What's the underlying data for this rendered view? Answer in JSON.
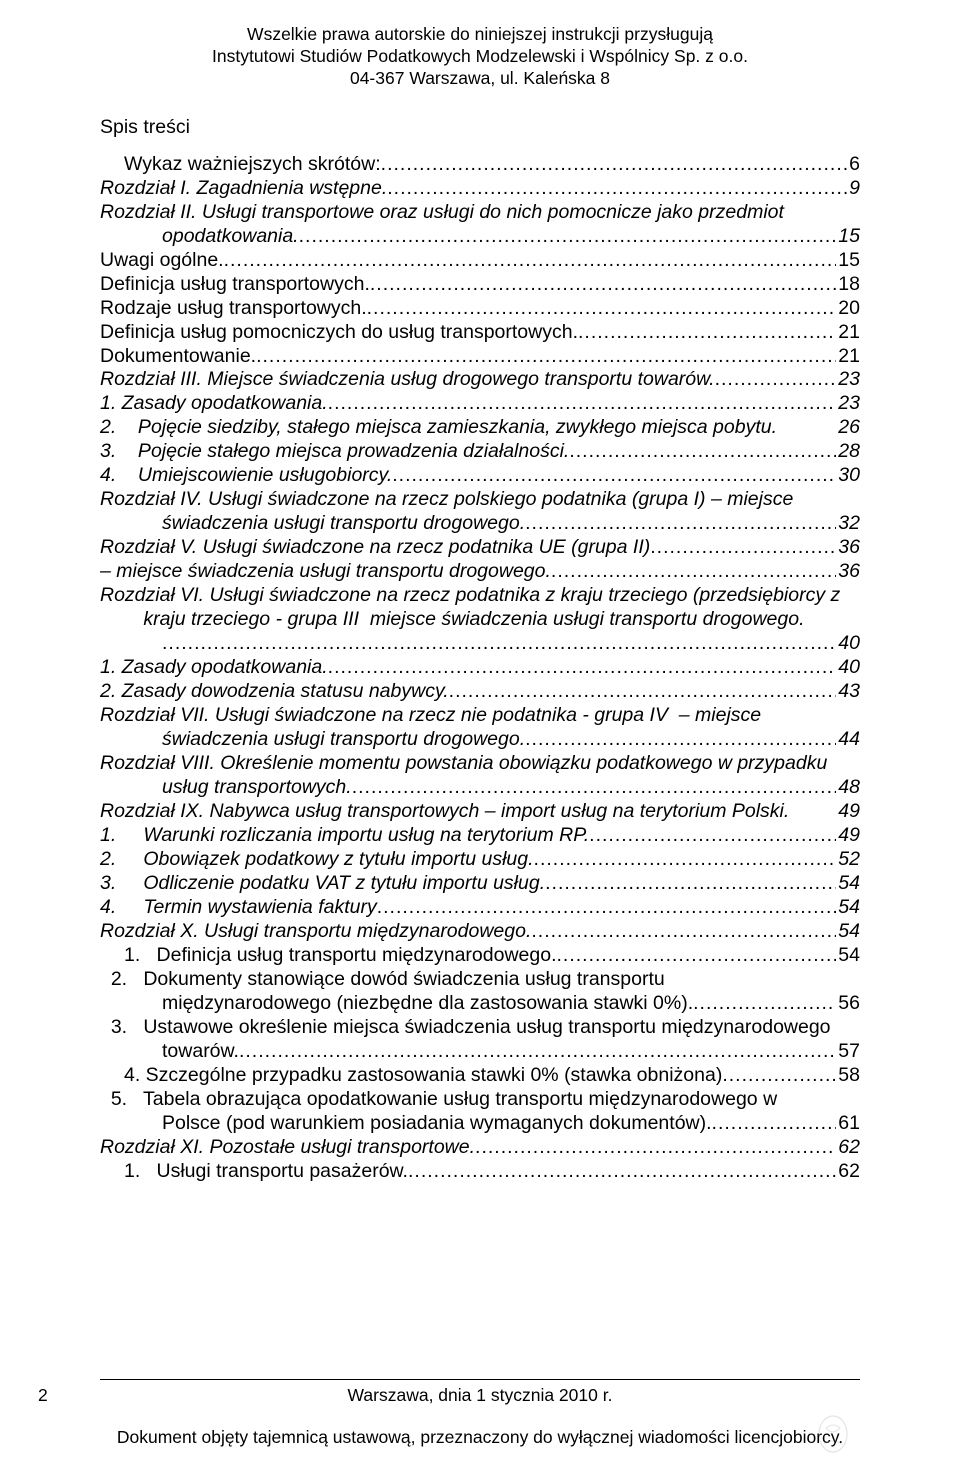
{
  "header": {
    "line1": "Wszelkie prawa autorskie do niniejszej instrukcji przysługują",
    "line2": "Instytutowi Studiów Podatkowych Modzelewski i Wspólnicy Sp. z o.o.",
    "line3": "04-367 Warszawa, ul. Kaleńska 8"
  },
  "section_title": "Spis treści",
  "toc": [
    {
      "label": "Wykaz ważniejszych skrótów:",
      "page": "6",
      "italic": false,
      "indent": "indent1"
    },
    {
      "label": "Rozdział I. Zagadnienia wstępne.",
      "page": "9",
      "italic": true,
      "indent": ""
    },
    {
      "label": "Rozdział II. Usługi transportowe oraz usługi do nich pomocnicze jako przedmiot",
      "italic": true,
      "indent": "",
      "wrap": true
    },
    {
      "label": "opodatkowania.",
      "page": "15",
      "italic": true,
      "indent": "hang",
      "cont": true
    },
    {
      "label": "Uwagi ogólne.",
      "page": "15",
      "italic": false,
      "indent": ""
    },
    {
      "label": "Definicja usług transportowych.",
      "page": "18",
      "italic": false,
      "indent": ""
    },
    {
      "label": "Rodzaje usług transportowych.",
      "page": "20",
      "italic": false,
      "indent": ""
    },
    {
      "label": "Definicja usług pomocniczych do usług transportowych.",
      "page": "21",
      "italic": false,
      "indent": ""
    },
    {
      "label": "Dokumentowanie.",
      "page": "21",
      "italic": false,
      "indent": ""
    },
    {
      "label": "Rozdział III. Miejsce świadczenia usług drogowego transportu towarów.",
      "page": "23",
      "italic": true,
      "indent": ""
    },
    {
      "label": "1. Zasady opodatkowania.",
      "page": "23",
      "italic": true,
      "indent": ""
    },
    {
      "label": "2.    Pojęcie siedziby, stałego miejsca zamieszkania, zwykłego miejsca pobytu.",
      "page": "26",
      "italic": true,
      "indent": "",
      "nodots": true
    },
    {
      "label": "3.    Pojęcie stałego miejsca prowadzenia działalności.",
      "page": "28",
      "italic": true,
      "indent": ""
    },
    {
      "label": "4.    Umiejscowienie usługobiorcy.",
      "page": "30",
      "italic": true,
      "indent": ""
    },
    {
      "label": "Rozdział IV. Usługi świadczone na rzecz polskiego podatnika (grupa I) – miejsce",
      "italic": true,
      "indent": "",
      "wrap": true
    },
    {
      "label": "świadczenia usługi transportu drogowego.",
      "page": "32",
      "italic": true,
      "indent": "hang",
      "cont": true
    },
    {
      "label": "Rozdział V. Usługi świadczone na rzecz podatnika UE (grupa II)",
      "page": "36",
      "italic": true,
      "indent": ""
    },
    {
      "label": "– miejsce świadczenia usługi transportu drogowego.",
      "page": "36",
      "italic": true,
      "indent": ""
    },
    {
      "label": "Rozdział VI. Usługi świadczone na rzecz podatnika z kraju trzeciego (przedsiębiorcy z",
      "italic": true,
      "indent": "",
      "wrap": true
    },
    {
      "label": "kraju trzeciego - grupa III  miejsce świadczenia usługi transportu drogowego.",
      "italic": true,
      "indent": "hang",
      "cont": true,
      "wrap": true
    },
    {
      "label": "",
      "page": "40",
      "italic": true,
      "indent": "hang",
      "cont": true
    },
    {
      "label": "1. Zasady opodatkowania.",
      "page": "40",
      "italic": true,
      "indent": ""
    },
    {
      "label": "2. Zasady dowodzenia statusu nabywcy.",
      "page": "43",
      "italic": true,
      "indent": ""
    },
    {
      "label": "Rozdział VII. Usługi świadczone na rzecz nie podatnika - grupa IV  – miejsce",
      "italic": true,
      "indent": "",
      "wrap": true
    },
    {
      "label": "świadczenia usługi transportu drogowego.",
      "page": "44",
      "italic": true,
      "indent": "hang",
      "cont": true
    },
    {
      "label": "Rozdział VIII. Określenie momentu powstania obowiązku podatkowego w przypadku",
      "italic": true,
      "indent": "",
      "wrap": true
    },
    {
      "label": "usług transportowych.",
      "page": "48",
      "italic": true,
      "indent": "hang",
      "cont": true
    },
    {
      "label": "Rozdział IX. Nabywca usług transportowych – import usług na terytorium Polski. ",
      "page": "49",
      "italic": true,
      "indent": "",
      "nodots": true
    },
    {
      "label": "1.     Warunki rozliczania importu usług na terytorium RP.",
      "page": "49",
      "italic": true,
      "indent": ""
    },
    {
      "label": "2.     Obowiązek podatkowy z tytułu importu usług.",
      "page": "52",
      "italic": true,
      "indent": ""
    },
    {
      "label": "3.     Odliczenie podatku VAT z tytułu importu usług.",
      "page": "54",
      "italic": true,
      "indent": ""
    },
    {
      "label": "4.     Termin wystawienia faktury",
      "page": "54",
      "italic": true,
      "indent": ""
    },
    {
      "label": "Rozdział X. Usługi transportu międzynarodowego.",
      "page": "54",
      "italic": true,
      "indent": ""
    },
    {
      "label": "1.   Definicja usług transportu międzynarodowego.",
      "page": "54",
      "italic": false,
      "indent": "indent1"
    },
    {
      "label": "2.   Dokumenty stanowiące dowód świadczenia usług transportu",
      "italic": false,
      "indent": "indent1",
      "wrap": true
    },
    {
      "label": "międzynarodowego (niezbędne dla zastosowania stawki 0%).",
      "page": "56",
      "italic": false,
      "indent": "hang",
      "cont": true
    },
    {
      "label": "3.   Ustawowe określenie miejsca świadczenia usług transportu międzynarodowego",
      "italic": false,
      "indent": "indent1",
      "wrap": true
    },
    {
      "label": "towarów.",
      "page": "57",
      "italic": false,
      "indent": "hang",
      "cont": true
    },
    {
      "label": "4. Szczególne przypadku zastosowania stawki 0% (stawka obniżona)",
      "page": "58",
      "italic": false,
      "indent": "indent1"
    },
    {
      "label": "5.   Tabela obrazująca opodatkowanie usług transportu międzynarodowego w",
      "italic": false,
      "indent": "indent1",
      "wrap": true
    },
    {
      "label": "Polsce (pod warunkiem posiadania wymaganych dokumentów).",
      "page": "61",
      "italic": false,
      "indent": "hang",
      "cont": true
    },
    {
      "label": "Rozdział XI. Pozostałe usługi transportowe.",
      "page": "62",
      "italic": true,
      "indent": ""
    },
    {
      "label": "1.   Usługi transportu pasażerów.",
      "page": "62",
      "italic": false,
      "indent": "indent1"
    }
  ],
  "footer": {
    "page_number": "2",
    "city_date": "Warszawa, dnia 1 stycznia 2010 r.",
    "note": "Dokument objęty tajemnicą ustawową, przeznaczony do wyłącznej wiadomości licencjobiorcy."
  }
}
